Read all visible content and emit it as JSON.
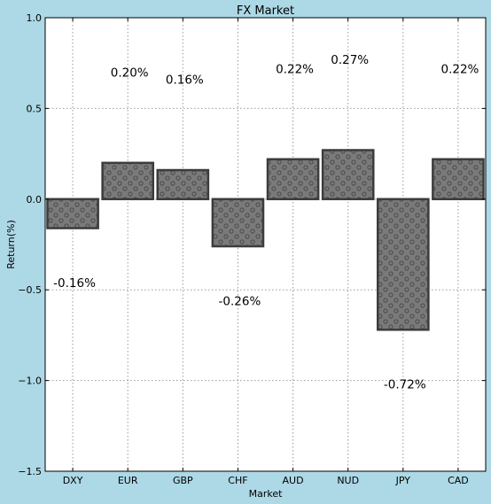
{
  "chart_data": {
    "type": "bar",
    "title": "FX Market",
    "xlabel": "Market",
    "ylabel": "Return(%)",
    "categories": [
      "DXY",
      "EUR",
      "GBP",
      "CHF",
      "AUD",
      "NUD",
      "JPY",
      "CAD"
    ],
    "values": [
      -0.16,
      0.2,
      0.16,
      -0.26,
      0.22,
      0.27,
      -0.72,
      0.22
    ],
    "data_labels": [
      "-0.16%",
      "0.20%",
      "0.16%",
      "-0.26%",
      "0.22%",
      "0.27%",
      "-0.72%",
      "0.22%"
    ],
    "ylim": [
      -1.5,
      1.0
    ],
    "yticks": [
      1.0,
      0.5,
      0.0,
      -0.5,
      -1.0,
      -1.5
    ],
    "ytick_labels": [
      "1.0",
      "0.5",
      "0.0",
      "−0.5",
      "−1.0",
      "−1.5"
    ],
    "grid": true,
    "legend": "none",
    "colors": {
      "background": "#add8e6",
      "plot_area": "#ffffff",
      "bar_fill": "#7a7a7a",
      "bar_edge": "#3c3c3c",
      "hatch": "#4a4a4a",
      "grid": "#9a9a9a"
    },
    "hatch_pattern": "circles"
  }
}
